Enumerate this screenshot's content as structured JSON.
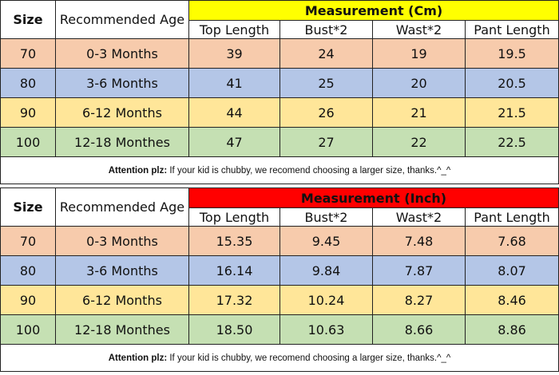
{
  "colors": {
    "cm_header_bg": "#ffff00",
    "inch_header_bg": "#ff0000",
    "row_70_bg": "#f7cbac",
    "row_80_bg": "#b4c6e7",
    "row_90_bg": "#ffe699",
    "row_100_bg": "#c5e0b3"
  },
  "columns": {
    "size": "Size",
    "age": "Recommended Age",
    "top_length": "Top Length",
    "bust": "Bust*2",
    "wast": "Wast*2",
    "pant_length": "Pant Length"
  },
  "tables": [
    {
      "title": "Measurement (Cm)",
      "rows": [
        {
          "size": "70",
          "age": "0-3 Months",
          "top": "39",
          "bust": "24",
          "wast": "19",
          "pant": "19.5"
        },
        {
          "size": "80",
          "age": "3-6 Months",
          "top": "41",
          "bust": "25",
          "wast": "20",
          "pant": "20.5"
        },
        {
          "size": "90",
          "age": "6-12 Months",
          "top": "44",
          "bust": "26",
          "wast": "21",
          "pant": "21.5"
        },
        {
          "size": "100",
          "age": "12-18 Monthes",
          "top": "47",
          "bust": "27",
          "wast": "22",
          "pant": "22.5"
        }
      ],
      "note_label": "Attention plz:",
      "note_text": " If your kid is chubby, we recomend choosing a larger size, thanks.^_^"
    },
    {
      "title": "Measurement (Inch)",
      "rows": [
        {
          "size": "70",
          "age": "0-3 Months",
          "top": "15.35",
          "bust": "9.45",
          "wast": "7.48",
          "pant": "7.68"
        },
        {
          "size": "80",
          "age": "3-6 Months",
          "top": "16.14",
          "bust": "9.84",
          "wast": "7.87",
          "pant": "8.07"
        },
        {
          "size": "90",
          "age": "6-12 Months",
          "top": "17.32",
          "bust": "10.24",
          "wast": "8.27",
          "pant": "8.46"
        },
        {
          "size": "100",
          "age": "12-18 Monthes",
          "top": "18.50",
          "bust": "10.63",
          "wast": "8.66",
          "pant": "8.86"
        }
      ],
      "note_label": "Attention plz:",
      "note_text": " If your kid is chubby, we recomend choosing a larger size, thanks.^_^"
    }
  ]
}
